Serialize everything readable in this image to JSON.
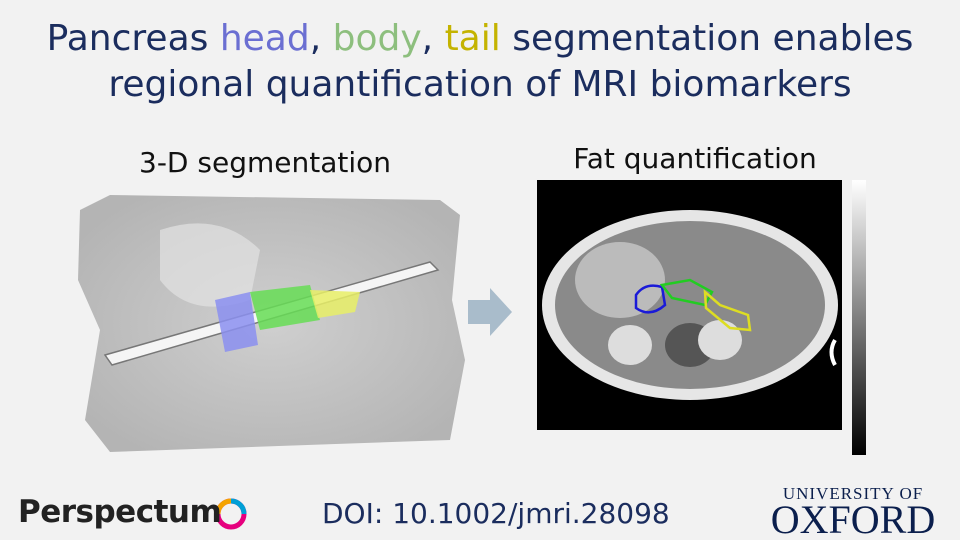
{
  "title": {
    "line1": [
      {
        "text": "Pancreas ",
        "color": "#1b2d5e"
      },
      {
        "text": "head",
        "color": "#6b6fd2"
      },
      {
        "text": ", ",
        "color": "#1b2d5e"
      },
      {
        "text": "body",
        "color": "#8dbf7e"
      },
      {
        "text": ", ",
        "color": "#1b2d5e"
      },
      {
        "text": "tail",
        "color": "#c4b300"
      },
      {
        "text": " segmentation enables",
        "color": "#1b2d5e"
      }
    ],
    "line2": "regional quantification of MRI biomarkers"
  },
  "panels": [
    {
      "caption": "3-D segmentation"
    },
    {
      "caption": "Fat quantification"
    }
  ],
  "footer": {
    "logo": "Perspectum",
    "doi": "DOI: 10.1002/jmri.28098",
    "university_top": "UNIVERSITY OF",
    "university_name": "OXFORD"
  }
}
